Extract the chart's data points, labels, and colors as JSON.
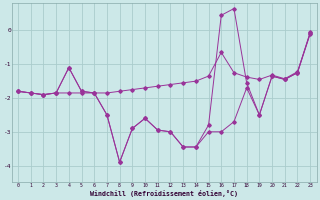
{
  "xlabel": "Windchill (Refroidissement éolien,°C)",
  "bg_color": "#cce8e8",
  "grid_color": "#aacccc",
  "line_color": "#993399",
  "x_data": [
    0,
    1,
    2,
    3,
    4,
    5,
    6,
    7,
    8,
    9,
    10,
    11,
    12,
    13,
    14,
    15,
    16,
    17,
    18,
    19,
    20,
    21,
    22,
    23
  ],
  "series1": [
    -1.8,
    -1.85,
    -1.9,
    -1.85,
    -1.1,
    -1.8,
    -1.85,
    -2.5,
    -3.9,
    -2.9,
    -2.6,
    -2.95,
    -3.0,
    -3.45,
    -3.45,
    -3.0,
    -3.0,
    -2.7,
    -1.7,
    -2.5,
    -1.35,
    -1.45,
    -1.25,
    -0.1
  ],
  "series2": [
    -1.8,
    -1.85,
    -1.9,
    -1.85,
    -1.1,
    -1.8,
    -1.85,
    -2.5,
    -3.9,
    -2.9,
    -2.6,
    -2.95,
    -3.0,
    -3.45,
    -3.45,
    -2.8,
    0.45,
    0.65,
    -1.55,
    -2.5,
    -1.35,
    -1.45,
    -1.25,
    -0.05
  ],
  "series3": [
    -1.8,
    -1.85,
    -1.9,
    -1.85,
    -1.85,
    -1.85,
    -1.85,
    -1.85,
    -1.8,
    -1.75,
    -1.7,
    -1.65,
    -1.6,
    -1.55,
    -1.5,
    -1.35,
    -0.65,
    -1.25,
    -1.38,
    -1.45,
    -1.32,
    -1.43,
    -1.22,
    -0.08
  ],
  "ylim": [
    -4.5,
    0.8
  ],
  "xlim": [
    -0.5,
    23.5
  ],
  "yticks": [
    0,
    -1,
    -2,
    -3,
    -4
  ],
  "xticks": [
    0,
    1,
    2,
    3,
    4,
    5,
    6,
    7,
    8,
    9,
    10,
    11,
    12,
    13,
    14,
    15,
    16,
    17,
    18,
    19,
    20,
    21,
    22,
    23
  ]
}
